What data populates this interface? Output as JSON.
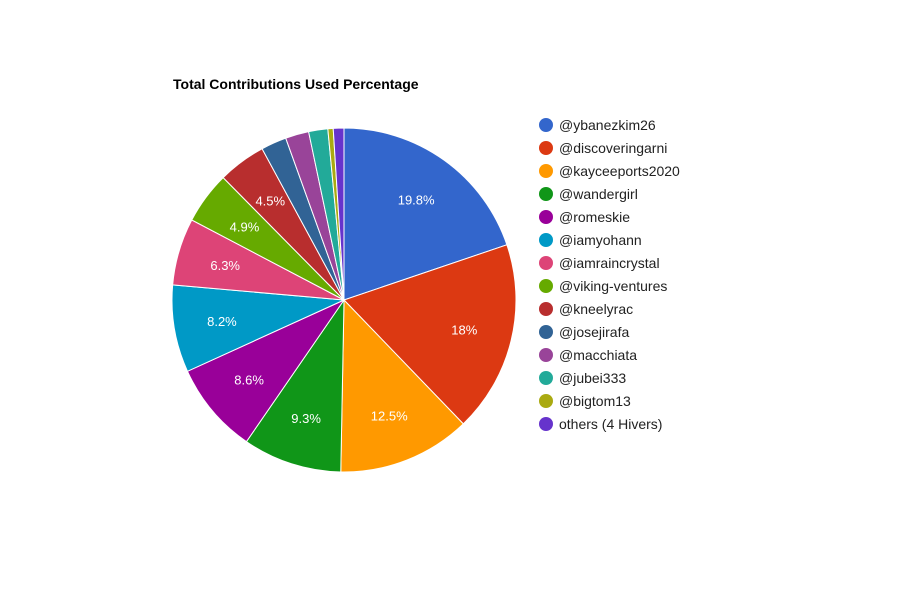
{
  "chart_data": {
    "type": "pie",
    "title": "Total Contributions Used Percentage",
    "legend_position": "right",
    "slices": [
      {
        "label": "@ybanezkim26",
        "value": 19.8,
        "data_label": "19.8%",
        "color": "#3366cc"
      },
      {
        "label": "@discoveringarni",
        "value": 18.0,
        "data_label": "18%",
        "color": "#dc3912"
      },
      {
        "label": "@kayceeports2020",
        "value": 12.5,
        "data_label": "12.5%",
        "color": "#ff9900"
      },
      {
        "label": "@wandergirl",
        "value": 9.3,
        "data_label": "9.3%",
        "color": "#109618"
      },
      {
        "label": "@romeskie",
        "value": 8.6,
        "data_label": "8.6%",
        "color": "#990099"
      },
      {
        "label": "@iamyohann",
        "value": 8.2,
        "data_label": "8.2%",
        "color": "#0099c6"
      },
      {
        "label": "@iamraincrystal",
        "value": 6.3,
        "data_label": "6.3%",
        "color": "#dd4477"
      },
      {
        "label": "@viking-ventures",
        "value": 4.9,
        "data_label": "4.9%",
        "color": "#66aa00"
      },
      {
        "label": "@kneelyrac",
        "value": 4.5,
        "data_label": "4.5%",
        "color": "#b82e2e"
      },
      {
        "label": "@josejirafa",
        "value": 2.4,
        "data_label": "",
        "color": "#316395"
      },
      {
        "label": "@macchiata",
        "value": 2.2,
        "data_label": "",
        "color": "#994499"
      },
      {
        "label": "@jubei333",
        "value": 1.8,
        "data_label": "",
        "color": "#22aa99"
      },
      {
        "label": "@bigtom13",
        "value": 0.5,
        "data_label": "",
        "color": "#aaaa11"
      },
      {
        "label": "others (4 Hivers)",
        "value": 1.0,
        "data_label": "",
        "color": "#6633cc"
      }
    ]
  }
}
